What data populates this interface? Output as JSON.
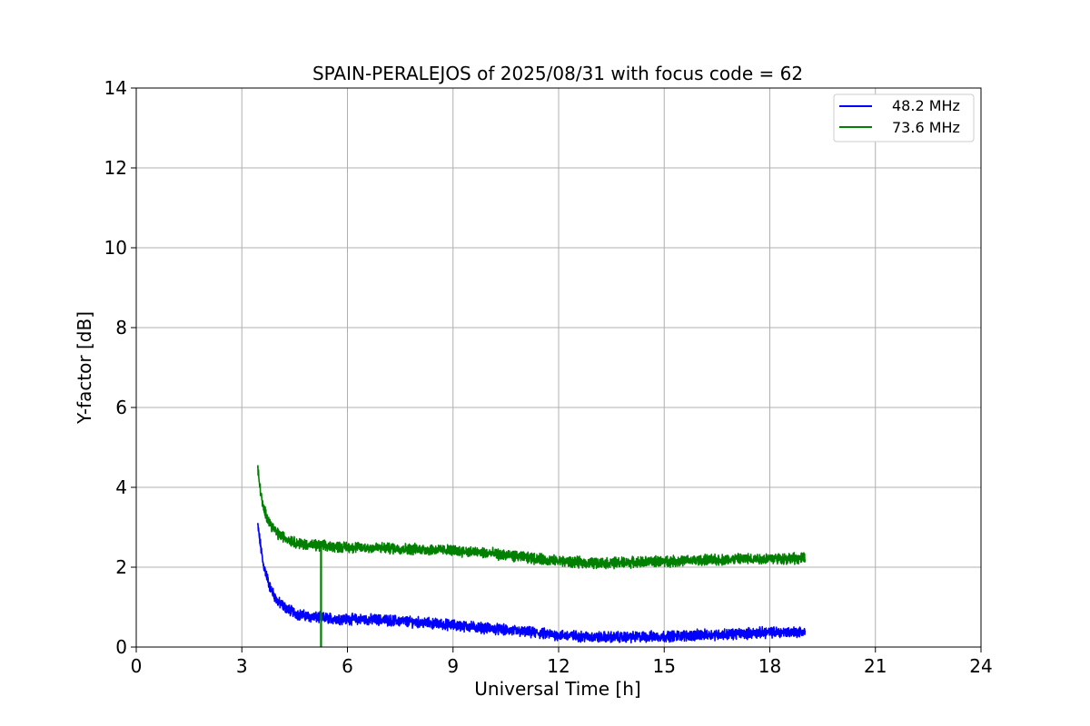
{
  "chart_data": {
    "type": "line",
    "title": "SPAIN-PERALEJOS of 2025/08/31 with focus code = 62",
    "xlabel": "Universal Time [h]",
    "ylabel": "Y-factor [dB]",
    "xlim": [
      0,
      24
    ],
    "ylim": [
      0,
      14
    ],
    "xticks": [
      0,
      3,
      6,
      9,
      12,
      15,
      18,
      21,
      24
    ],
    "yticks": [
      0,
      2,
      4,
      6,
      8,
      10,
      12,
      14
    ],
    "grid": true,
    "legend_position": "top-right",
    "series": [
      {
        "name": "48.2 MHz",
        "color": "#0000ff",
        "x": [
          3.45,
          3.5,
          3.6,
          3.8,
          4.0,
          4.3,
          4.6,
          5.0,
          5.5,
          6.0,
          7.0,
          8.0,
          9.0,
          10.0,
          11.0,
          12.0,
          13.0,
          14.0,
          15.0,
          16.0,
          17.0,
          18.0,
          19.0
        ],
        "y": [
          3.05,
          2.75,
          2.1,
          1.5,
          1.15,
          0.95,
          0.82,
          0.75,
          0.72,
          0.7,
          0.68,
          0.62,
          0.55,
          0.47,
          0.38,
          0.3,
          0.25,
          0.25,
          0.27,
          0.3,
          0.33,
          0.37,
          0.38
        ]
      },
      {
        "name": "73.6 MHz",
        "color": "#008000",
        "x": [
          3.45,
          3.5,
          3.6,
          3.8,
          4.0,
          4.3,
          4.6,
          5.0,
          5.5,
          6.0,
          7.0,
          8.0,
          9.0,
          10.0,
          11.0,
          12.0,
          13.0,
          14.0,
          15.0,
          16.0,
          17.0,
          18.0,
          19.0
        ],
        "y": [
          4.5,
          4.1,
          3.5,
          3.1,
          2.85,
          2.7,
          2.6,
          2.55,
          2.52,
          2.5,
          2.48,
          2.45,
          2.42,
          2.35,
          2.25,
          2.15,
          2.1,
          2.12,
          2.15,
          2.17,
          2.2,
          2.22,
          2.22
        ],
        "spike": {
          "x": 5.25,
          "y_min": 0.0,
          "y_max": 2.45
        }
      }
    ]
  }
}
